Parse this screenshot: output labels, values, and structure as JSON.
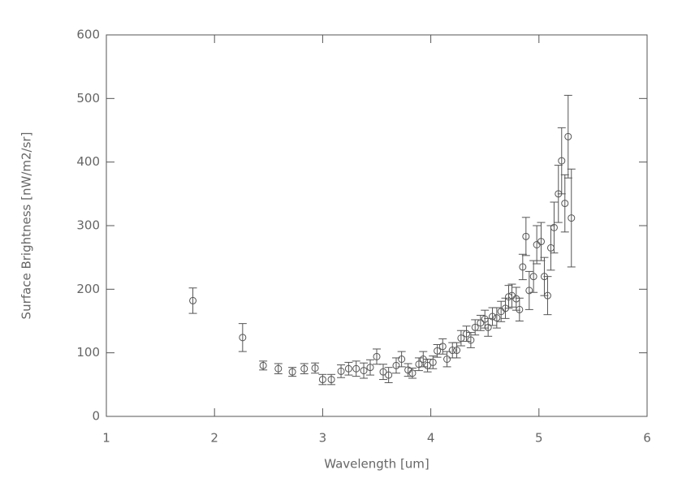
{
  "chart_data": {
    "type": "scatter",
    "xlabel": "Wavelength [um]",
    "ylabel": "Surface Brightness [nW/m2/sr]",
    "x": [
      1.8,
      2.26,
      2.45,
      2.59,
      2.72,
      2.83,
      2.93,
      3.0,
      3.08,
      3.17,
      3.24,
      3.31,
      3.38,
      3.44,
      3.5,
      3.56,
      3.61,
      3.68,
      3.73,
      3.79,
      3.83,
      3.89,
      3.93,
      3.97,
      4.02,
      4.06,
      4.11,
      4.15,
      4.2,
      4.24,
      4.28,
      4.33,
      4.37,
      4.41,
      4.46,
      4.5,
      4.53,
      4.57,
      4.61,
      4.65,
      4.69,
      4.72,
      4.75,
      4.79,
      4.82,
      4.85,
      4.88,
      4.91,
      4.95,
      4.98,
      5.02,
      5.05,
      5.08,
      5.11,
      5.14,
      5.18,
      5.21,
      5.24,
      5.27,
      5.3
    ],
    "values": [
      182,
      124,
      80,
      75,
      70,
      75,
      76,
      58,
      58,
      71,
      75,
      75,
      72,
      77,
      94,
      70,
      65,
      80,
      90,
      73,
      68,
      82,
      90,
      80,
      85,
      103,
      110,
      90,
      104,
      104,
      123,
      130,
      120,
      140,
      147,
      153,
      140,
      157,
      155,
      165,
      170,
      188,
      190,
      185,
      168,
      235,
      283,
      198,
      220,
      270,
      275,
      220,
      190,
      265,
      297,
      350,
      402,
      335,
      440,
      312
    ],
    "errors": [
      20,
      22,
      7,
      8,
      7,
      8,
      8,
      8,
      8,
      10,
      10,
      12,
      12,
      12,
      12,
      12,
      12,
      12,
      12,
      10,
      8,
      10,
      12,
      10,
      10,
      10,
      12,
      12,
      12,
      12,
      12,
      12,
      12,
      12,
      12,
      14,
      14,
      14,
      16,
      16,
      16,
      18,
      18,
      18,
      18,
      20,
      30,
      30,
      25,
      30,
      30,
      30,
      30,
      35,
      40,
      45,
      52,
      45,
      65,
      77
    ],
    "color": "#555555",
    "xlim": [
      1,
      6
    ],
    "xticks": [
      1,
      2,
      3,
      4,
      5,
      6
    ],
    "ylim": [
      0,
      600
    ],
    "yticks": [
      0,
      100,
      200,
      300,
      400,
      500,
      600
    ]
  }
}
